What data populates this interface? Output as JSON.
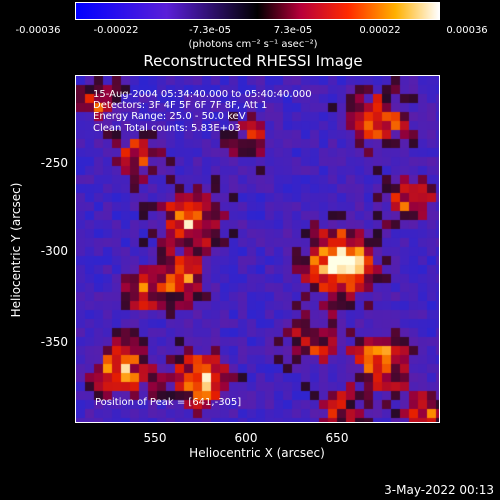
{
  "colorbar": {
    "tick_labels": [
      "-0.00036",
      "-0.00022",
      "-7.3e-05",
      "7.3e-05",
      "0.00022",
      "0.00036"
    ],
    "units": "(photons cm⁻² s⁻¹ asec⁻²)",
    "range": [
      -0.00036,
      0.00036
    ]
  },
  "chart_data": {
    "type": "heatmap",
    "title": "Reconstructed RHESSI Image",
    "xlabel": "Heliocentric X (arcsec)",
    "ylabel": "Heliocentric Y (arcsec)",
    "x_ticks": [
      "550",
      "600",
      "650"
    ],
    "y_ticks": [
      "-250",
      "-300",
      "-350"
    ],
    "xlim": [
      505,
      695
    ],
    "ylim": [
      -395,
      -205
    ],
    "peak": {
      "x": 641,
      "y": -305
    },
    "annotations": {
      "time": "15-Aug-2004 05:34:40.000 to 05:40:40.000",
      "detectors": "Detectors: 3F 4F 5F 6F 7F 8F, Att 1",
      "energy": "Energy Range: 25.0 - 50.0 keV",
      "clean": "Clean    Total counts: 5.83E+03",
      "peak_label": "Position of Peak = [641,-305]"
    }
  },
  "footer": {
    "date": "3-May-2022 00:13"
  }
}
